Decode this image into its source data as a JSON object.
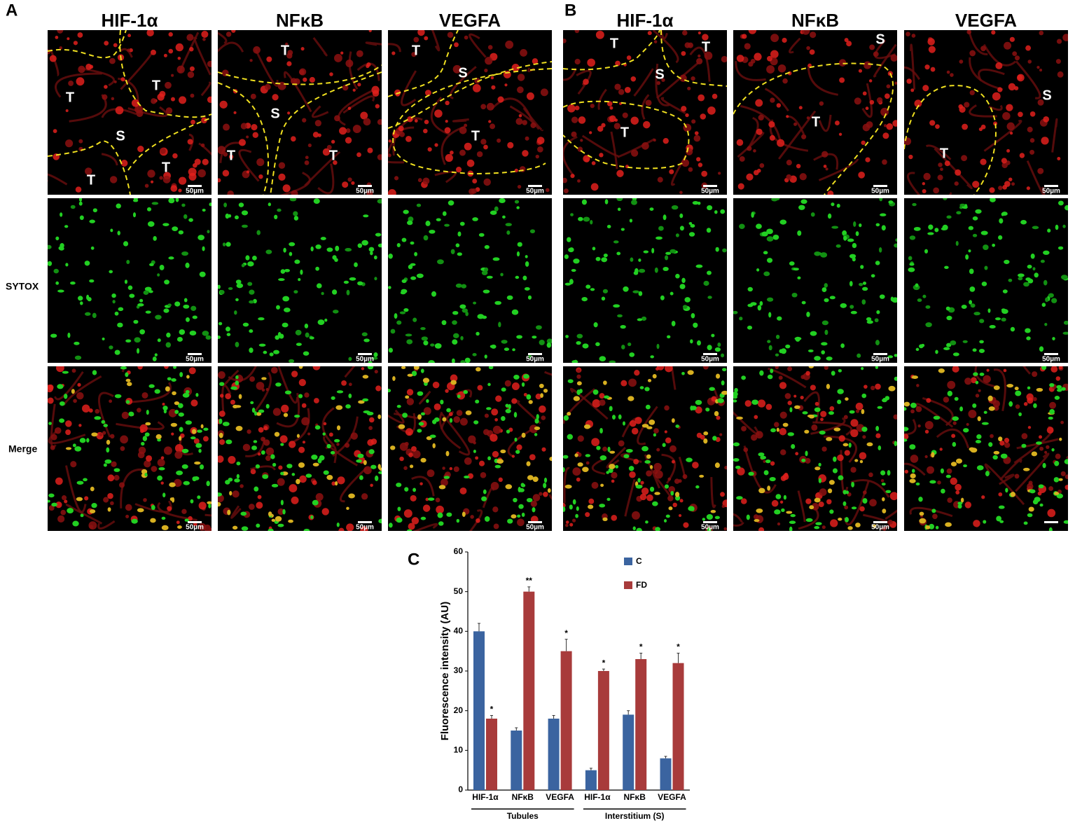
{
  "panels": [
    {
      "label": "A",
      "columns": [
        "HIF-1α",
        "NFκB",
        "VEGFA"
      ],
      "region_labels": [
        [
          "T",
          "T",
          "S",
          "T",
          "T"
        ],
        [
          "T",
          "S",
          "T",
          "T"
        ],
        [
          "T",
          "S",
          "T"
        ]
      ]
    },
    {
      "label": "B",
      "columns": [
        "HIF-1α",
        "NFκB",
        "VEGFA"
      ],
      "region_labels": [
        [
          "T",
          "T",
          "S",
          "T"
        ],
        [
          "S",
          "T"
        ],
        [
          "S",
          "T"
        ]
      ]
    }
  ],
  "row_labels": [
    "SYTOX",
    "Merge"
  ],
  "scale_label": "50µm",
  "chart_data": {
    "type": "bar",
    "panel_label": "C",
    "categories": [
      "HIF-1α",
      "NFκB",
      "VEGFA",
      "HIF-1α",
      "NFκB",
      "VEGFA"
    ],
    "groups": [
      {
        "name": "Tubules",
        "size": 3
      },
      {
        "name": "Interstitium (S)",
        "size": 3
      }
    ],
    "series": [
      {
        "name": "C",
        "color": "#3b64a0",
        "values": [
          40,
          15,
          18,
          5,
          19,
          8
        ],
        "errors": [
          2,
          0.7,
          0.8,
          0.5,
          1,
          0.5
        ]
      },
      {
        "name": "FD",
        "color": "#a83b3b",
        "values": [
          18,
          50,
          35,
          30,
          33,
          32
        ],
        "errors": [
          0.8,
          1.2,
          3,
          0.5,
          1.5,
          2.5
        ],
        "significance": [
          "*",
          "**",
          "*",
          "*",
          "*",
          "*"
        ]
      }
    ],
    "ylabel": "Fluorescence intensity (AU)",
    "ylim": [
      0,
      60
    ],
    "yticks": [
      0,
      10,
      20,
      30,
      40,
      50,
      60
    ]
  }
}
